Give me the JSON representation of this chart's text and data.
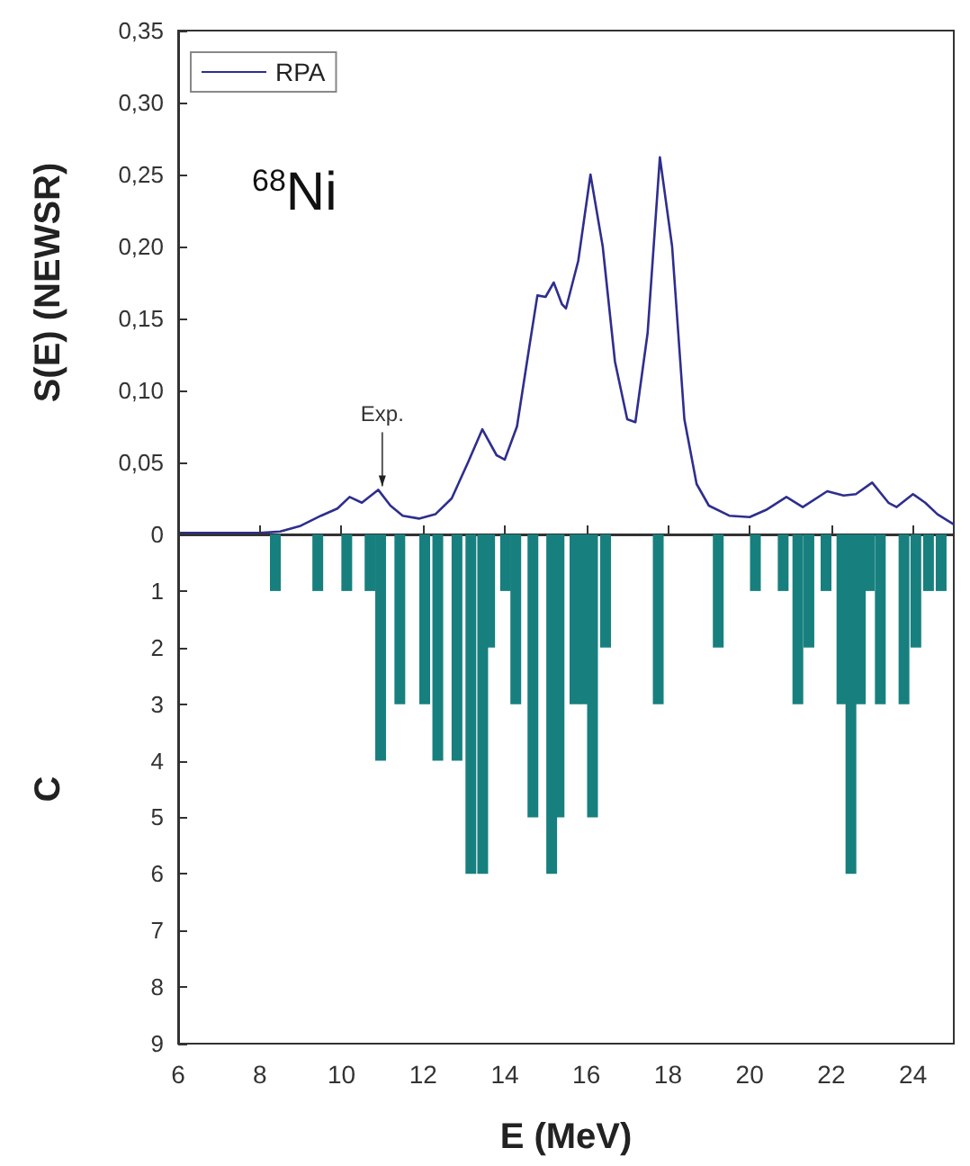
{
  "chart_data": [
    {
      "type": "line",
      "ylabel": "S(E) (NEWSR)",
      "legend": "top left",
      "tick_labels": "y",
      "annotations": [
        "$^{68}$Ni",
        {
          "text": "Exp.",
          "x": 11,
          "y": 0.031
        }
      ],
      "xlim": [
        6,
        25
      ],
      "xticks": [
        6,
        8,
        10,
        12,
        14,
        16,
        18,
        20,
        22,
        24
      ],
      "ylim": [
        0,
        0.35
      ],
      "yticks": [
        0,
        {
          "value": 0.05,
          "label": "0,05"
        },
        {
          "value": 0.1,
          "label": "0,10"
        },
        {
          "value": 0.15,
          "label": "0,15"
        },
        {
          "value": 0.2,
          "label": "0,20"
        },
        {
          "value": 0.25,
          "label": "0,25"
        },
        {
          "value": 0.3,
          "label": "0,30"
        },
        {
          "value": 0.35,
          "label": "0,35"
        }
      ],
      "series": [
        {
          "name": "RPA",
          "color": "#2e2e8f",
          "x": [
            6,
            8,
            8.5,
            9,
            9.5,
            9.9,
            10.2,
            10.5,
            10.9,
            11.2,
            11.5,
            11.9,
            12.3,
            12.7,
            13.1,
            13.45,
            13.8,
            14.0,
            14.3,
            14.6,
            14.8,
            15.0,
            15.2,
            15.4,
            15.5,
            15.8,
            16.1,
            16.4,
            16.7,
            17.0,
            17.2,
            17.5,
            17.8,
            18.1,
            18.4,
            18.7,
            19.0,
            19.5,
            20.0,
            20.4,
            20.9,
            21.3,
            21.9,
            22.3,
            22.6,
            23.0,
            23.4,
            23.6,
            24.0,
            24.3,
            24.6,
            25.0
          ],
          "values": [
            0.001,
            0.001,
            0.002,
            0.006,
            0.013,
            0.018,
            0.026,
            0.022,
            0.031,
            0.02,
            0.013,
            0.011,
            0.014,
            0.025,
            0.05,
            0.073,
            0.055,
            0.052,
            0.075,
            0.13,
            0.166,
            0.165,
            0.175,
            0.16,
            0.157,
            0.19,
            0.25,
            0.2,
            0.12,
            0.08,
            0.078,
            0.14,
            0.262,
            0.2,
            0.08,
            0.035,
            0.02,
            0.013,
            0.012,
            0.017,
            0.026,
            0.019,
            0.03,
            0.027,
            0.028,
            0.036,
            0.022,
            0.019,
            0.028,
            0.022,
            0.014,
            0.007
          ]
        }
      ]
    },
    {
      "type": "bar",
      "xlabel": "E (MeV)",
      "ylabel": "C",
      "xlim": [
        6,
        25
      ],
      "xticks": [
        6,
        8,
        10,
        12,
        14,
        16,
        18,
        20,
        22,
        24
      ],
      "ylim": [
        9,
        0
      ],
      "yticks": [
        {
          "value": 0,
          "label": null
        },
        1,
        2,
        3,
        4,
        5,
        6,
        7,
        8,
        9
      ],
      "color": "#17807e",
      "x": [
        8.38,
        9.42,
        10.13,
        10.7,
        10.96,
        11.43,
        12.04,
        12.36,
        12.83,
        13.17,
        13.46,
        13.63,
        14.02,
        14.27,
        14.69,
        15.15,
        15.33,
        15.72,
        15.97,
        16.15,
        16.47,
        17.76,
        19.23,
        20.14,
        20.82,
        21.18,
        21.45,
        21.87,
        22.26,
        22.48,
        22.71,
        22.93,
        23.2,
        23.78,
        24.07,
        24.38,
        24.69
      ],
      "values": [
        1,
        1,
        1,
        1,
        4,
        3,
        3,
        4,
        4,
        6,
        6,
        2,
        1,
        3,
        5,
        6,
        5,
        3,
        3,
        5,
        2,
        3,
        2,
        1,
        1,
        3,
        2,
        1,
        3,
        6,
        3,
        1,
        3,
        3,
        2,
        1,
        1
      ]
    }
  ]
}
